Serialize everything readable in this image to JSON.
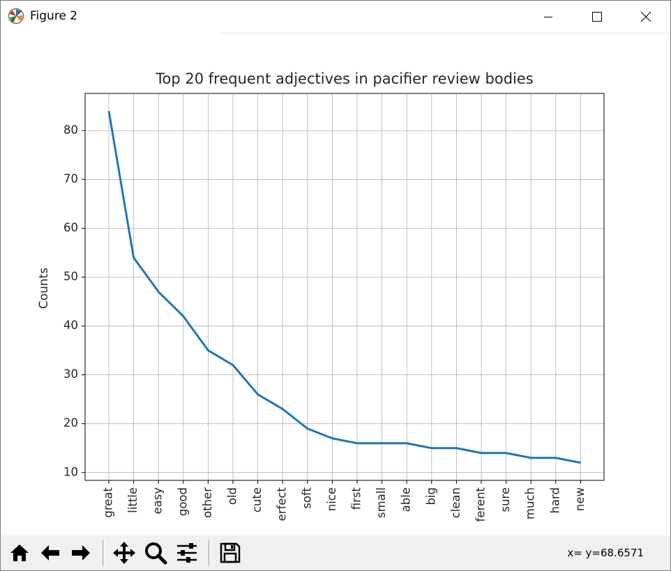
{
  "window": {
    "title": "Figure 2",
    "controls": [
      "minimize-icon",
      "maximize-icon",
      "close-icon"
    ]
  },
  "toolbar": {
    "buttons": [
      {
        "name": "home",
        "icon": "home-icon"
      },
      {
        "name": "back",
        "icon": "arrow-left-icon"
      },
      {
        "name": "forward",
        "icon": "arrow-right-icon"
      },
      {
        "name": "pan",
        "icon": "move-icon"
      },
      {
        "name": "zoom",
        "icon": "magnifier-icon"
      },
      {
        "name": "configure-subplots",
        "icon": "sliders-icon"
      },
      {
        "name": "save",
        "icon": "floppy-disk-icon"
      }
    ],
    "coords": "x= y=68.6571"
  },
  "chart_data": {
    "type": "line",
    "title": "Top 20 frequent adjectives in pacifier review bodies",
    "xlabel": "",
    "ylabel": "Counts",
    "categories": [
      "great",
      "little",
      "easy",
      "good",
      "other",
      "old",
      "cute",
      "erfect",
      "soft",
      "nice",
      "first",
      "small",
      "able",
      "big",
      "clean",
      "ferent",
      "sure",
      "much",
      "hard",
      "new"
    ],
    "values": [
      84,
      54,
      47,
      42,
      35,
      32,
      26,
      23,
      19,
      17,
      16,
      16,
      16,
      15,
      15,
      14,
      14,
      13,
      13,
      12
    ],
    "yticks": [
      10,
      20,
      30,
      40,
      50,
      60,
      70,
      80
    ],
    "ylim": [
      8.4,
      87.6
    ],
    "grid": true,
    "line_color": "#1f77b4"
  }
}
